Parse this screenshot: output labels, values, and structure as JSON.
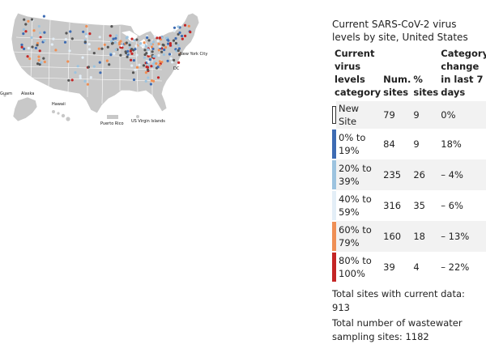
{
  "map": {
    "labels": {
      "new_york_city": "New York City",
      "dc": "DC",
      "guam": "Guam",
      "alaska": "Alaska",
      "hawaii": "Hawaii",
      "puerto_rico": "Puerto Rico",
      "us_virgin_islands": "US Virgin Islands"
    },
    "land_color": "#c8c8c8",
    "border_color": "#ffffff"
  },
  "legend": {
    "title": "Current SARS-CoV-2 virus levels by site, United States",
    "headers": {
      "category": "Current virus levels category",
      "num_sites": "Num. sites",
      "pct_sites": "% sites",
      "change": "Category change in last 7 days"
    },
    "rows": [
      {
        "category": "New Site",
        "num_sites": "79",
        "pct_sites": "9",
        "change": "0%",
        "color": "#ffffff"
      },
      {
        "category": "0% to 19%",
        "num_sites": "84",
        "pct_sites": "9",
        "change": "18%",
        "color": "#3d6bb3"
      },
      {
        "category": "20% to 39%",
        "num_sites": "235",
        "pct_sites": "26",
        "change": "– 4%",
        "color": "#9cc3df"
      },
      {
        "category": "40% to 59%",
        "num_sites": "316",
        "pct_sites": "35",
        "change": "– 6%",
        "color": "#e3eef7"
      },
      {
        "category": "60% to 79%",
        "num_sites": "160",
        "pct_sites": "18",
        "change": "– 13%",
        "color": "#ef8f55"
      },
      {
        "category": "80% to 100%",
        "num_sites": "39",
        "pct_sites": "4",
        "change": "– 22%",
        "color": "#c42525"
      }
    ],
    "total_current": "Total sites with current data: 913",
    "total_sampling": "Total number of wastewater sampling sites: 1182"
  }
}
